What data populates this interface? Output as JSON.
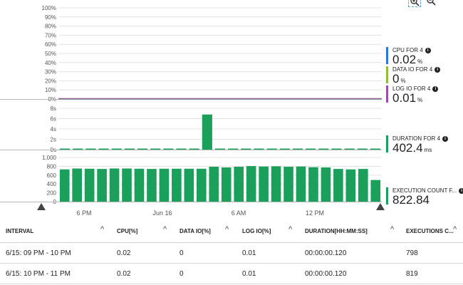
{
  "toolbar": {
    "zoom_in_icon": "zoom-in-icon",
    "zoom_out_icon": "zoom-out-icon"
  },
  "chart_data": [
    {
      "type": "line",
      "ylim": [
        0,
        100
      ],
      "y_ticks": [
        "100%",
        "90%",
        "80%",
        "70%",
        "60%",
        "50%",
        "40%",
        "30%",
        "20%",
        "10%",
        "0%"
      ],
      "grid": true,
      "series": [
        {
          "name": "CPU FOR 4",
          "summary_value": "0.02",
          "unit": "%",
          "color": "#2e75d4"
        },
        {
          "name": "DATA IO FOR 4",
          "summary_value": "0",
          "unit": "%",
          "color": "#8cbf3f"
        },
        {
          "name": "LOG IO FOR 4",
          "summary_value": "0.01",
          "unit": "%",
          "color": "#9b4fa6"
        }
      ]
    },
    {
      "type": "bar",
      "ylim": [
        0,
        8
      ],
      "y_ticks": [
        "8s",
        "6s",
        "4s",
        "2s",
        "0s"
      ],
      "grid": true,
      "values": [
        0.12,
        0.12,
        0.12,
        0.12,
        0.12,
        0.12,
        0.12,
        0.12,
        0.12,
        0.12,
        0.12,
        6.8,
        0.12,
        0.12,
        0.12,
        0.12,
        0.12,
        0.12,
        0.12,
        0.12,
        0.12,
        0.12,
        0.12,
        0.12,
        0.12
      ],
      "series": [
        {
          "name": "DURATION FOR 4",
          "summary_value": "402.4",
          "unit": "ms",
          "color": "#1aa05a"
        }
      ]
    },
    {
      "type": "bar",
      "ylim": [
        0,
        1000
      ],
      "y_ticks": [
        "1,000",
        "800",
        "600",
        "400",
        "200",
        "0"
      ],
      "grid": true,
      "values": [
        730,
        750,
        745,
        740,
        750,
        750,
        745,
        740,
        745,
        745,
        745,
        745,
        790,
        775,
        790,
        805,
        795,
        800,
        790,
        795,
        780,
        775,
        740,
        730,
        740,
        490
      ],
      "series": [
        {
          "name": "EXECUTION COUNT F...",
          "summary_value": "822.84",
          "unit": "",
          "color": "#1aa05a"
        }
      ]
    }
  ],
  "x_axis": {
    "labels": [
      "6 PM",
      "Jun 16",
      "6 AM",
      "12 PM"
    ]
  },
  "table": {
    "columns": [
      "INTERVAL",
      "CPU[%]",
      "DATA IO[%]",
      "LOG IO[%]",
      "DURATION[HH:MM:SS]",
      "EXECUTIONS C..."
    ],
    "rows": [
      [
        "6/15: 09 PM - 10 PM",
        "0.02",
        "0",
        "0.01",
        "00:00:00.120",
        "798"
      ],
      [
        "6/15: 10 PM - 11 PM",
        "0.02",
        "0",
        "0.01",
        "00:00:00.120",
        "819"
      ]
    ]
  }
}
